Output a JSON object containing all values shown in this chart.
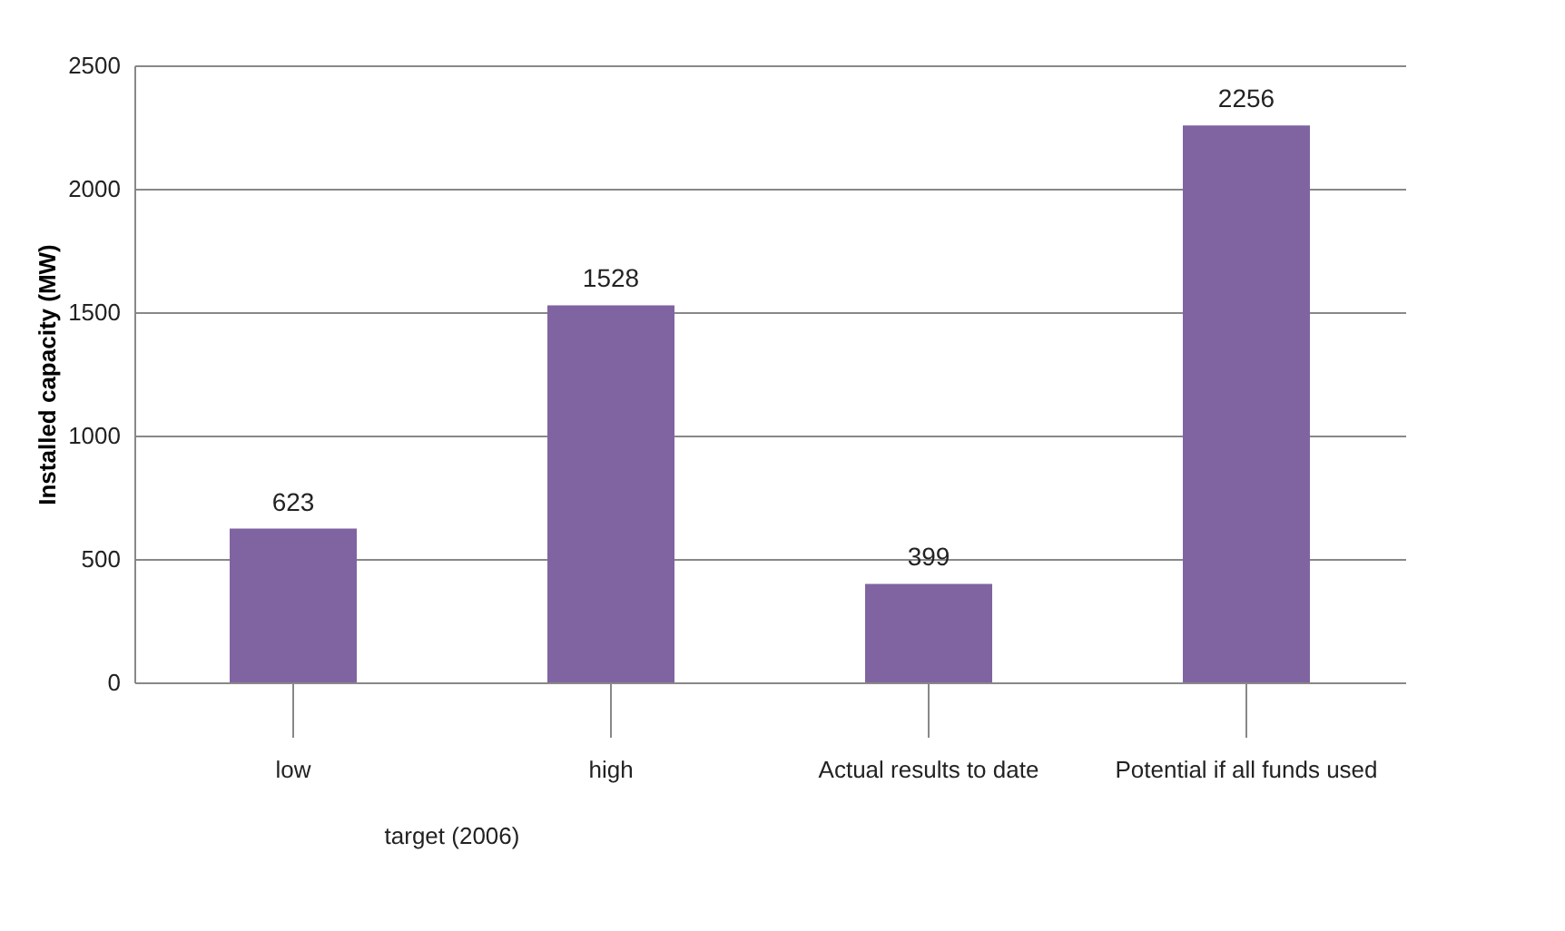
{
  "chart_data": {
    "type": "bar",
    "ylabel": "Installed capacity (MW)",
    "categories": [
      "low",
      "high",
      "Actual results to date",
      "Potential if all funds used"
    ],
    "values": [
      623,
      1528,
      399,
      2256
    ],
    "color": "#8064a2",
    "ylim": [
      0,
      2500
    ],
    "yticks": [
      0,
      500,
      1000,
      1500,
      2000,
      2500
    ],
    "grid": "y",
    "data_labels": true,
    "annotations": [
      "target (2006)"
    ]
  }
}
